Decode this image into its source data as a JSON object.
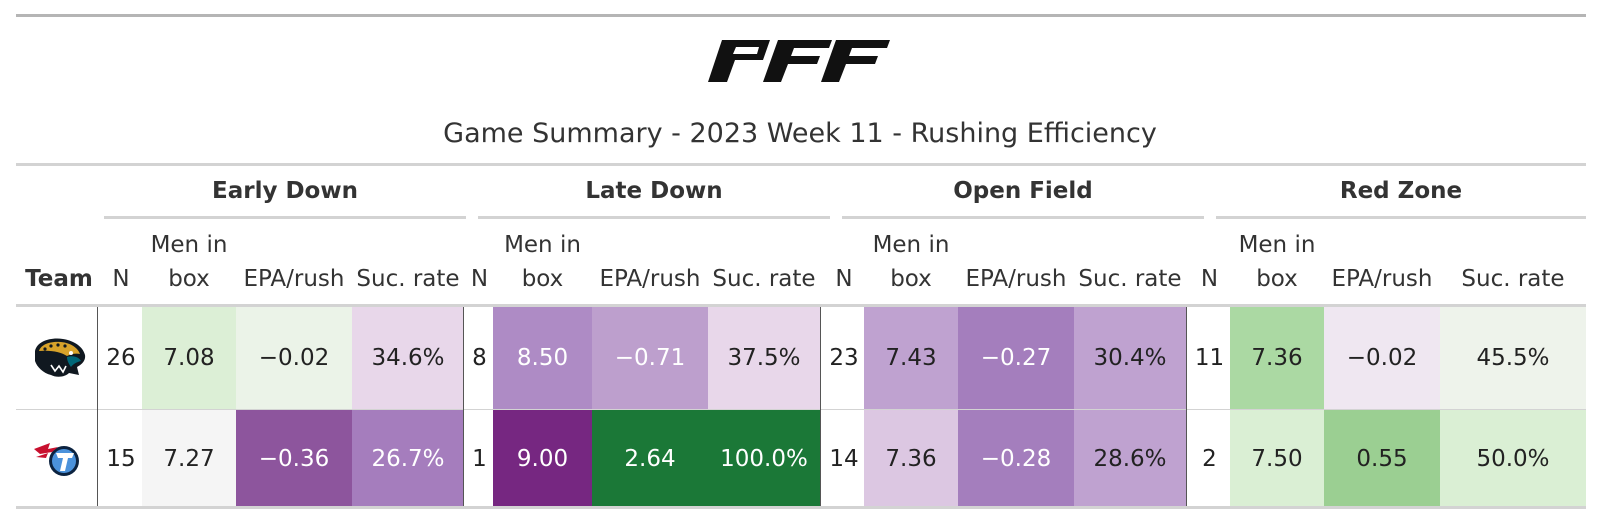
{
  "title": "Game Summary - 2023 Week 11 - Rushing Efficiency",
  "logo_text": "PFF",
  "groups": [
    "Early Down",
    "Late Down",
    "Open Field",
    "Red Zone"
  ],
  "columns": {
    "team": "Team",
    "n": "N",
    "men_in_box_line1": "Men in",
    "men_in_box_line2": "box",
    "epa": "EPA/rush",
    "suc": "Suc. rate"
  },
  "rows": [
    {
      "team_icon": "jaguars-logo-icon",
      "cells": [
        {
          "v": "26",
          "bg": "#ffffff",
          "fg": "#222222"
        },
        {
          "v": "7.08",
          "bg": "#dcefd6",
          "fg": "#222222"
        },
        {
          "v": "−0.02",
          "bg": "#ebf3e8",
          "fg": "#222222"
        },
        {
          "v": "34.6%",
          "bg": "#e8d7ea",
          "fg": "#222222"
        },
        {
          "v": "8",
          "bg": "#ffffff",
          "fg": "#222222"
        },
        {
          "v": "8.50",
          "bg": "#ae8bc5",
          "fg": "#ffffff"
        },
        {
          "v": "−0.71",
          "bg": "#bd9fcd",
          "fg": "#ffffff"
        },
        {
          "v": "37.5%",
          "bg": "#e8d7ea",
          "fg": "#222222"
        },
        {
          "v": "23",
          "bg": "#ffffff",
          "fg": "#222222"
        },
        {
          "v": "7.43",
          "bg": "#bfa2d0",
          "fg": "#222222"
        },
        {
          "v": "−0.27",
          "bg": "#a47ebd",
          "fg": "#ffffff"
        },
        {
          "v": "30.4%",
          "bg": "#bfa2d0",
          "fg": "#222222"
        },
        {
          "v": "11",
          "bg": "#ffffff",
          "fg": "#222222"
        },
        {
          "v": "7.36",
          "bg": "#abd9a3",
          "fg": "#222222"
        },
        {
          "v": "−0.02",
          "bg": "#efe7f1",
          "fg": "#222222"
        },
        {
          "v": "45.5%",
          "bg": "#eef3eb",
          "fg": "#222222"
        }
      ]
    },
    {
      "team_icon": "titans-logo-icon",
      "cells": [
        {
          "v": "15",
          "bg": "#ffffff",
          "fg": "#222222"
        },
        {
          "v": "7.27",
          "bg": "#f5f5f5",
          "fg": "#222222"
        },
        {
          "v": "−0.36",
          "bg": "#8d559d",
          "fg": "#ffffff"
        },
        {
          "v": "26.7%",
          "bg": "#a57dbd",
          "fg": "#ffffff"
        },
        {
          "v": "1",
          "bg": "#ffffff",
          "fg": "#222222"
        },
        {
          "v": "9.00",
          "bg": "#762781",
          "fg": "#ffffff"
        },
        {
          "v": "2.64",
          "bg": "#1b7837",
          "fg": "#ffffff"
        },
        {
          "v": "100.0%",
          "bg": "#1b7837",
          "fg": "#ffffff"
        },
        {
          "v": "14",
          "bg": "#ffffff",
          "fg": "#222222"
        },
        {
          "v": "7.36",
          "bg": "#dcc7e2",
          "fg": "#222222"
        },
        {
          "v": "−0.28",
          "bg": "#a47ebd",
          "fg": "#ffffff"
        },
        {
          "v": "28.6%",
          "bg": "#bfa2d0",
          "fg": "#222222"
        },
        {
          "v": "2",
          "bg": "#ffffff",
          "fg": "#222222"
        },
        {
          "v": "7.50",
          "bg": "#daefd4",
          "fg": "#222222"
        },
        {
          "v": "0.55",
          "bg": "#9bcf92",
          "fg": "#222222"
        },
        {
          "v": "50.0%",
          "bg": "#daefd4",
          "fg": "#222222"
        }
      ]
    }
  ]
}
